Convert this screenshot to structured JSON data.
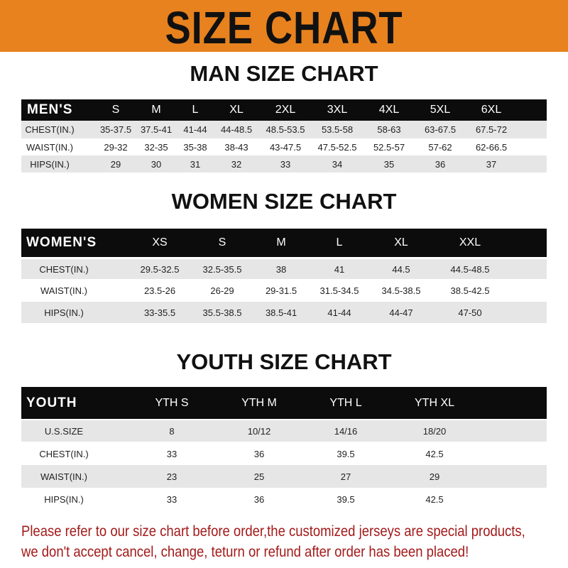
{
  "banner": {
    "title": "SIZE CHART",
    "color": "#E8821E"
  },
  "men": {
    "title": "MAN SIZE CHART",
    "header": [
      "MEN'S",
      "S",
      "M",
      "L",
      "XL",
      "2XL",
      "3XL",
      "4XL",
      "5XL",
      "6XL"
    ],
    "rows": [
      [
        "CHEST(IN.)",
        "35-37.5",
        "37.5-41",
        "41-44",
        "44-48.5",
        "48.5-53.5",
        "53.5-58",
        "58-63",
        "63-67.5",
        "67.5-72"
      ],
      [
        "WAIST(IN.)",
        "29-32",
        "32-35",
        "35-38",
        "38-43",
        "43-47.5",
        "47.5-52.5",
        "52.5-57",
        "57-62",
        "62-66.5"
      ],
      [
        "HIPS(IN.)",
        "29",
        "30",
        "31",
        "32",
        "33",
        "34",
        "35",
        "36",
        "37"
      ]
    ]
  },
  "women": {
    "title": "WOMEN SIZE CHART",
    "header": [
      "WOMEN'S",
      "XS",
      "S",
      "M",
      "L",
      "XL",
      "XXL"
    ],
    "rows": [
      [
        "CHEST(IN.)",
        "29.5-32.5",
        "32.5-35.5",
        "38",
        "41",
        "44.5",
        "44.5-48.5"
      ],
      [
        "WAIST(IN.)",
        "23.5-26",
        "26-29",
        "29-31.5",
        "31.5-34.5",
        "34.5-38.5",
        "38.5-42.5"
      ],
      [
        "HIPS(IN.)",
        "33-35.5",
        "35.5-38.5",
        "38.5-41",
        "41-44",
        "44-47",
        "47-50"
      ]
    ]
  },
  "youth": {
    "title": "YOUTH SIZE CHART",
    "header": [
      "YOUTH",
      "YTH S",
      "YTH M",
      "YTH L",
      "YTH XL"
    ],
    "rows": [
      [
        "U.S.SIZE",
        "8",
        "10/12",
        "14/16",
        "18/20"
      ],
      [
        "CHEST(IN.)",
        "33",
        "36",
        "39.5",
        "42.5"
      ],
      [
        "WAIST(IN.)",
        "23",
        "25",
        "27",
        "29"
      ],
      [
        "HIPS(IN.)",
        "33",
        "36",
        "39.5",
        "42.5"
      ]
    ]
  },
  "note": {
    "line1": "Please refer to our size chart before order,the customized jerseys are special products,",
    "line2": "we don't accept cancel, change, teturn or refund after order has been placed!",
    "color": "#a31a1a"
  }
}
